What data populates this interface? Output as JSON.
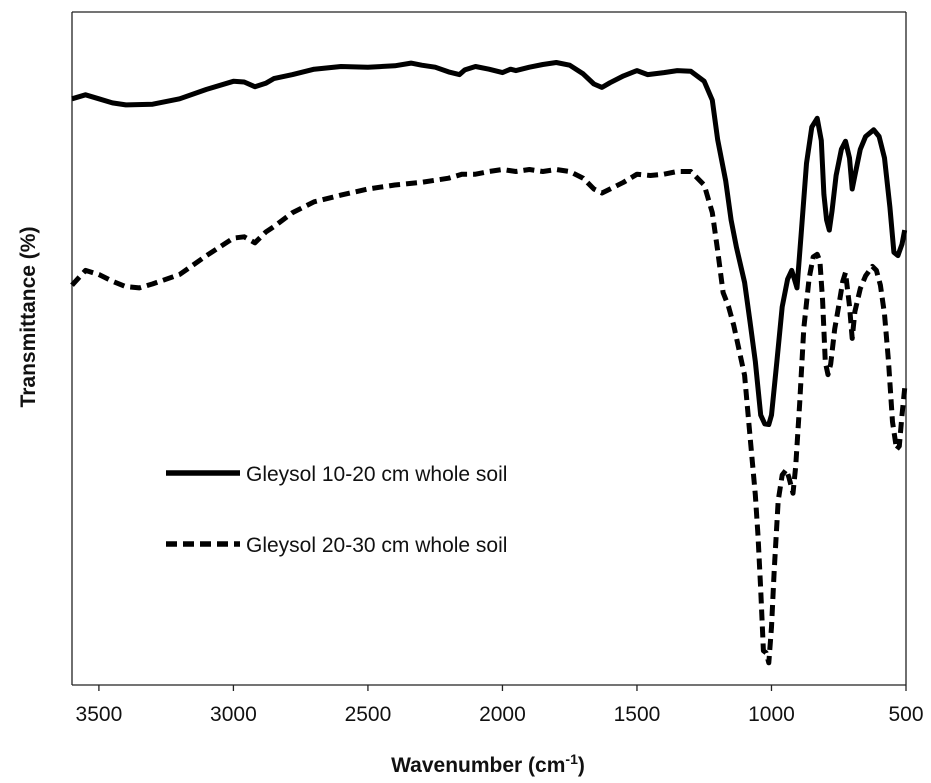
{
  "chart_data": {
    "type": "line",
    "title": "",
    "xlabel": "Wavenumber (cm",
    "xlabel_superscript": "-1",
    "xlabel_suffix": ")",
    "ylabel": "Transmittance (%)",
    "xlim": [
      3600,
      500
    ],
    "x_reversed": true,
    "ylim": [
      0,
      100
    ],
    "y_ticks_shown": false,
    "grid": false,
    "legend_position": "center-left",
    "x_ticks": [
      3500,
      3000,
      2500,
      2000,
      1500,
      1000,
      500
    ],
    "x_tick_labels": [
      "3500",
      "3000",
      "2500",
      "2000",
      "1500",
      "1000",
      "500"
    ],
    "series": [
      {
        "name": "Gleysol 10-20 cm whole soil",
        "style": "solid",
        "color": "#000000",
        "points": [
          [
            3600,
            87.1
          ],
          [
            3550,
            87.7
          ],
          [
            3500,
            87.1
          ],
          [
            3450,
            86.5
          ],
          [
            3400,
            86.2
          ],
          [
            3300,
            86.3
          ],
          [
            3200,
            87.1
          ],
          [
            3100,
            88.5
          ],
          [
            3000,
            89.7
          ],
          [
            2960,
            89.6
          ],
          [
            2920,
            88.9
          ],
          [
            2880,
            89.4
          ],
          [
            2850,
            90.1
          ],
          [
            2780,
            90.7
          ],
          [
            2700,
            91.5
          ],
          [
            2600,
            91.9
          ],
          [
            2500,
            91.8
          ],
          [
            2400,
            92.0
          ],
          [
            2340,
            92.4
          ],
          [
            2300,
            92.1
          ],
          [
            2250,
            91.8
          ],
          [
            2200,
            91.1
          ],
          [
            2160,
            90.7
          ],
          [
            2140,
            91.4
          ],
          [
            2100,
            91.9
          ],
          [
            2050,
            91.5
          ],
          [
            2000,
            91.0
          ],
          [
            1970,
            91.5
          ],
          [
            1950,
            91.3
          ],
          [
            1900,
            91.8
          ],
          [
            1850,
            92.2
          ],
          [
            1800,
            92.5
          ],
          [
            1750,
            92.1
          ],
          [
            1700,
            90.8
          ],
          [
            1660,
            89.3
          ],
          [
            1630,
            88.8
          ],
          [
            1600,
            89.5
          ],
          [
            1550,
            90.5
          ],
          [
            1500,
            91.3
          ],
          [
            1460,
            90.7
          ],
          [
            1400,
            91.0
          ],
          [
            1350,
            91.3
          ],
          [
            1300,
            91.2
          ],
          [
            1250,
            89.7
          ],
          [
            1220,
            86.9
          ],
          [
            1200,
            81.0
          ],
          [
            1170,
            74.9
          ],
          [
            1150,
            69.1
          ],
          [
            1130,
            65.0
          ],
          [
            1100,
            59.8
          ],
          [
            1080,
            54.0
          ],
          [
            1060,
            48.1
          ],
          [
            1040,
            40.1
          ],
          [
            1025,
            38.8
          ],
          [
            1010,
            38.7
          ],
          [
            1000,
            40.1
          ],
          [
            980,
            48.1
          ],
          [
            960,
            56.2
          ],
          [
            940,
            60.3
          ],
          [
            925,
            61.6
          ],
          [
            915,
            60.3
          ],
          [
            905,
            59.0
          ],
          [
            890,
            66.9
          ],
          [
            870,
            77.5
          ],
          [
            850,
            82.9
          ],
          [
            830,
            84.2
          ],
          [
            815,
            80.9
          ],
          [
            805,
            72.9
          ],
          [
            795,
            69.1
          ],
          [
            785,
            67.6
          ],
          [
            775,
            70.4
          ],
          [
            760,
            75.7
          ],
          [
            740,
            79.6
          ],
          [
            725,
            80.8
          ],
          [
            710,
            78.3
          ],
          [
            700,
            73.7
          ],
          [
            690,
            75.7
          ],
          [
            670,
            79.6
          ],
          [
            650,
            81.5
          ],
          [
            620,
            82.5
          ],
          [
            600,
            81.5
          ],
          [
            580,
            78.3
          ],
          [
            560,
            71.0
          ],
          [
            545,
            64.3
          ],
          [
            530,
            63.8
          ],
          [
            515,
            65.5
          ],
          [
            505,
            67.6
          ]
        ]
      },
      {
        "name": "Gleysol 20-30 cm whole soil",
        "style": "dashed",
        "color": "#000000",
        "points": [
          [
            3600,
            59.4
          ],
          [
            3550,
            61.6
          ],
          [
            3500,
            61.0
          ],
          [
            3450,
            60.0
          ],
          [
            3400,
            59.2
          ],
          [
            3350,
            59.0
          ],
          [
            3300,
            59.6
          ],
          [
            3200,
            61.0
          ],
          [
            3100,
            63.8
          ],
          [
            3000,
            66.4
          ],
          [
            2960,
            66.6
          ],
          [
            2920,
            65.7
          ],
          [
            2880,
            67.3
          ],
          [
            2850,
            68.1
          ],
          [
            2780,
            70.2
          ],
          [
            2700,
            71.8
          ],
          [
            2600,
            72.8
          ],
          [
            2500,
            73.7
          ],
          [
            2400,
            74.3
          ],
          [
            2300,
            74.7
          ],
          [
            2200,
            75.3
          ],
          [
            2150,
            75.9
          ],
          [
            2100,
            75.9
          ],
          [
            2050,
            76.3
          ],
          [
            2000,
            76.6
          ],
          [
            1950,
            76.3
          ],
          [
            1900,
            76.6
          ],
          [
            1850,
            76.3
          ],
          [
            1800,
            76.6
          ],
          [
            1750,
            76.3
          ],
          [
            1700,
            75.3
          ],
          [
            1660,
            73.7
          ],
          [
            1630,
            73.1
          ],
          [
            1600,
            73.7
          ],
          [
            1550,
            74.7
          ],
          [
            1500,
            75.9
          ],
          [
            1450,
            75.7
          ],
          [
            1400,
            75.9
          ],
          [
            1350,
            76.3
          ],
          [
            1300,
            76.3
          ],
          [
            1250,
            74.3
          ],
          [
            1220,
            70.2
          ],
          [
            1200,
            64.5
          ],
          [
            1180,
            58.3
          ],
          [
            1160,
            56.3
          ],
          [
            1140,
            53.4
          ],
          [
            1100,
            46.0
          ],
          [
            1080,
            37.0
          ],
          [
            1060,
            28.3
          ],
          [
            1050,
            22.2
          ],
          [
            1040,
            14.2
          ],
          [
            1030,
            5.1
          ],
          [
            1020,
            4.8
          ],
          [
            1010,
            3.3
          ],
          [
            1000,
            8.6
          ],
          [
            990,
            17.0
          ],
          [
            975,
            27.4
          ],
          [
            960,
            31.2
          ],
          [
            945,
            32.0
          ],
          [
            935,
            30.8
          ],
          [
            920,
            28.5
          ],
          [
            910,
            32.5
          ],
          [
            895,
            41.9
          ],
          [
            880,
            53.0
          ],
          [
            860,
            60.4
          ],
          [
            845,
            63.6
          ],
          [
            830,
            64.0
          ],
          [
            820,
            63.0
          ],
          [
            810,
            57.1
          ],
          [
            800,
            48.0
          ],
          [
            790,
            46.1
          ],
          [
            780,
            47.7
          ],
          [
            765,
            52.9
          ],
          [
            750,
            56.3
          ],
          [
            735,
            60.0
          ],
          [
            725,
            61.3
          ],
          [
            710,
            56.3
          ],
          [
            700,
            51.5
          ],
          [
            690,
            55.5
          ],
          [
            670,
            58.9
          ],
          [
            650,
            60.8
          ],
          [
            625,
            62.2
          ],
          [
            610,
            61.6
          ],
          [
            595,
            59.4
          ],
          [
            580,
            55.1
          ],
          [
            565,
            48.1
          ],
          [
            550,
            39.1
          ],
          [
            535,
            35.0
          ],
          [
            525,
            35.5
          ],
          [
            515,
            40.1
          ],
          [
            505,
            44.1
          ]
        ]
      }
    ]
  }
}
